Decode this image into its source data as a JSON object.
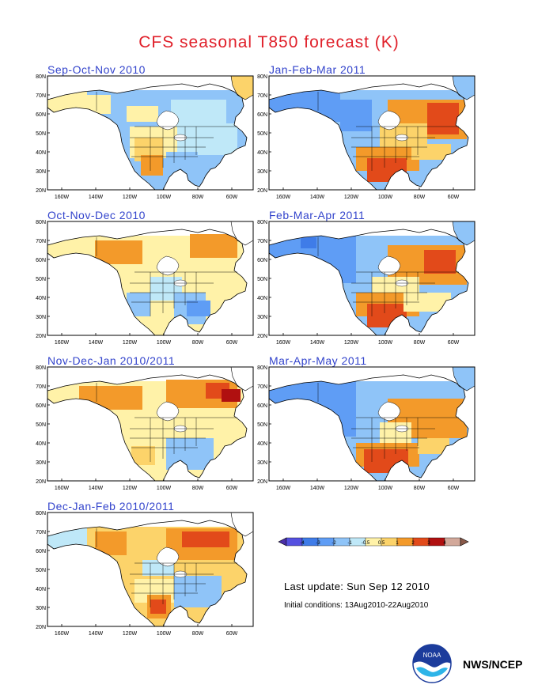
{
  "title": "CFS seasonal T850 forecast (K)",
  "panels": [
    {
      "label": "Sep-Oct-Nov 2010",
      "pattern": "son"
    },
    {
      "label": "Jan-Feb-Mar 2011",
      "pattern": "jfm"
    },
    {
      "label": "Oct-Nov-Dec 2010",
      "pattern": "ond"
    },
    {
      "label": "Feb-Mar-Apr 2011",
      "pattern": "fma"
    },
    {
      "label": "Nov-Dec-Jan 2010/2011",
      "pattern": "ndj"
    },
    {
      "label": "Mar-Apr-May 2011",
      "pattern": "mam"
    },
    {
      "label": "Dec-Jan-Feb 2010/2011",
      "pattern": "djf"
    }
  ],
  "axes": {
    "lat_labels": [
      "80N",
      "70N",
      "60N",
      "50N",
      "40N",
      "30N",
      "20N"
    ],
    "lon_labels": [
      "160W",
      "140W",
      "120W",
      "100W",
      "80W",
      "60W"
    ]
  },
  "colorbar": {
    "labels": [
      "-4",
      "-3",
      "-2",
      "-1",
      "-0.5",
      "0.5",
      "1",
      "2",
      "3",
      "4"
    ],
    "colors": [
      "#4b2fa8",
      "#5550e0",
      "#3f7ce8",
      "#5f9df5",
      "#8fc4f8",
      "#bfe8f8",
      "#fff2a8",
      "#fcd36a",
      "#f39a2a",
      "#e24a1a",
      "#b01010",
      "#d2a89a",
      "#8a5a4a"
    ]
  },
  "footer": {
    "last_update": "Last update: Sun Sep 12 2010",
    "initial_conditions": "Initial conditions: 13Aug2010-22Aug2010",
    "agency": "NWS/NCEP"
  },
  "icons": {
    "logo": "noaa-logo-icon"
  }
}
